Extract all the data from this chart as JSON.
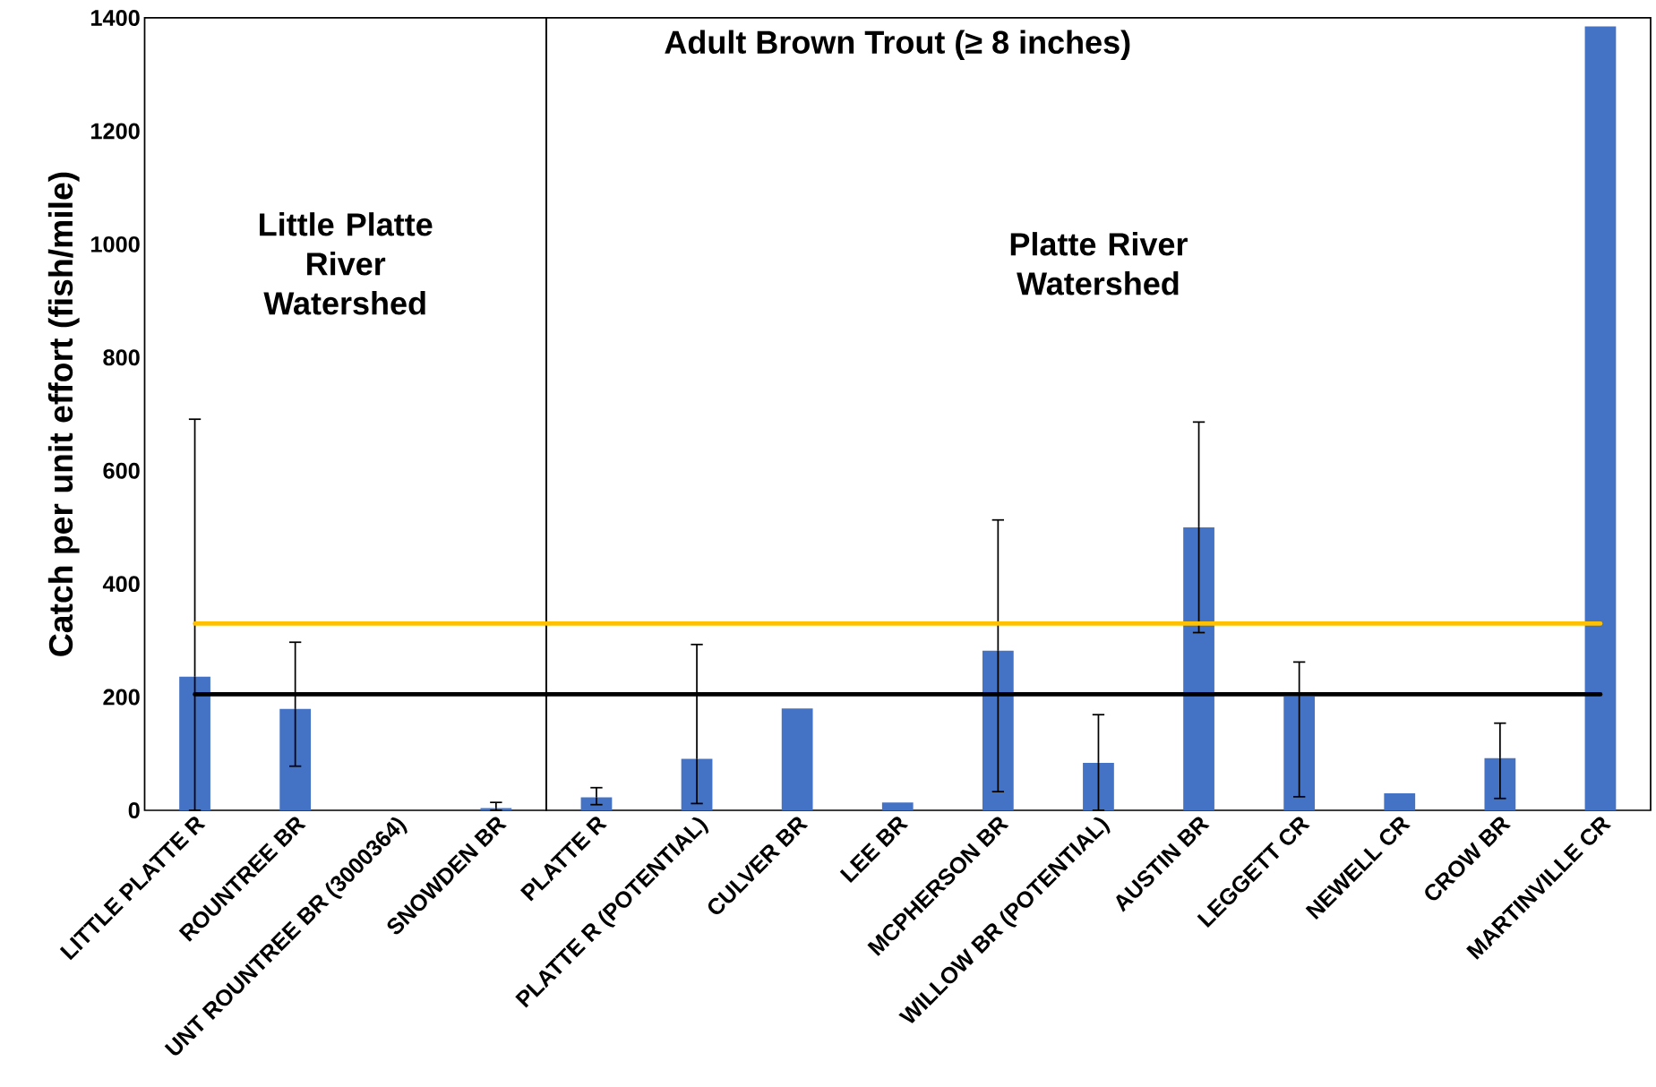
{
  "chart_data": [
    {
      "type": "bar",
      "ylabel": "Catch per unit effort (fish/mile)",
      "categories": [
        "LITTLE PLATTE R",
        "ROUNTREE BR",
        "UNT ROUNTREE BR (3000364)",
        "SNOWDEN BR"
      ],
      "values": [
        236,
        179,
        0,
        4
      ],
      "errors": [
        [
          0,
          691
        ],
        [
          78,
          297
        ],
        null,
        [
          0,
          14
        ]
      ],
      "color": "#4472c4",
      "ylim": [
        0,
        1400
      ],
      "yticks": [
        0,
        200,
        400,
        600,
        800,
        1000,
        1200,
        1400
      ],
      "ref_lines": [
        {
          "axis": "y",
          "value": 330,
          "color": "#ffc000"
        },
        {
          "axis": "y",
          "value": 205,
          "color": "#000000"
        }
      ],
      "annotations": [
        "Little Platte River Watershed"
      ]
    },
    {
      "type": "bar",
      "title": "Adult Brown Trout (≥ 8 inches)",
      "categories": [
        "PLATTE R",
        "PLATTE R (POTENTIAL)",
        "CULVER BR",
        "LEE BR",
        "MCPHERSON BR",
        "WILLOW BR (POTENTIAL)",
        "AUSTIN BR",
        "LEGGETT CR",
        "NEWELL CR",
        "CROW BR",
        "MARTINVILLE CR"
      ],
      "values": [
        23,
        91,
        180,
        14,
        282,
        84,
        500,
        201,
        30,
        92,
        1385
      ],
      "errors": [
        [
          10,
          40
        ],
        [
          12,
          293
        ],
        null,
        null,
        [
          33,
          513
        ],
        [
          0,
          169
        ],
        [
          314,
          686
        ],
        [
          24,
          262
        ],
        null,
        [
          21,
          154
        ],
        null
      ],
      "color": "#4472c4",
      "ylim": [
        0,
        1400
      ],
      "tick_labels": "x",
      "ref_lines": [
        {
          "axis": "y",
          "value": 330,
          "color": "#ffc000"
        },
        {
          "axis": "y",
          "value": 205,
          "color": "#000000"
        }
      ],
      "annotations": [
        "Platte River Watershed"
      ]
    }
  ]
}
